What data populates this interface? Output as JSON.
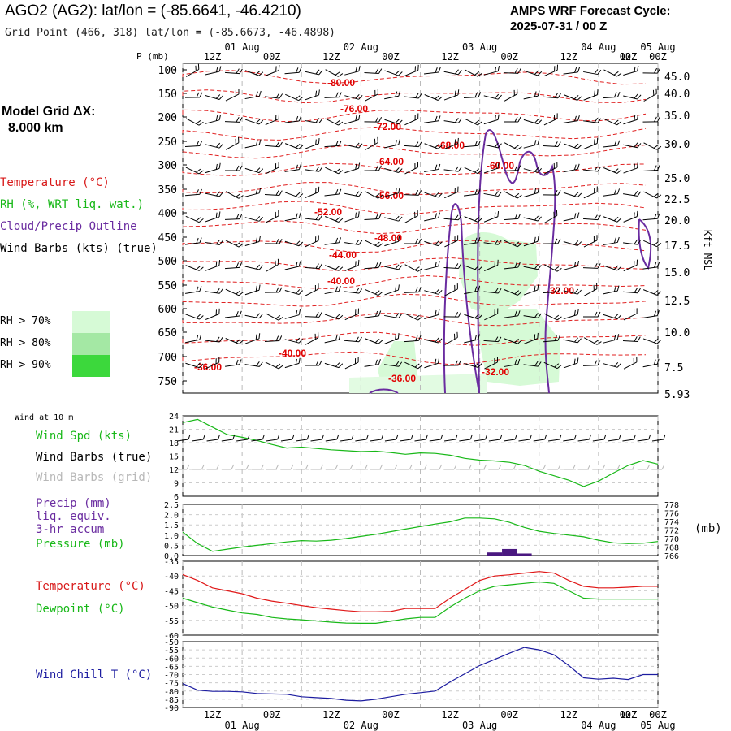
{
  "header": {
    "title": "AGO2 (AG2):  lat/lon = (-85.6641, -46.4210)",
    "subtitle": "Grid Point (466, 318) lat/lon = (-85.6673, -46.4898)",
    "cycle_line1": "AMPS WRF Forecast Cycle:",
    "cycle_line2": "2025-07-31 / 00  Z",
    "model_grid_label": "Model Grid ΔX:",
    "model_grid_value": "8.000 km"
  },
  "legend": {
    "temperature": "Temperature (°C)",
    "rh": "RH (%, WRT liq. wat.)",
    "cloud": "Cloud/Precip Outline",
    "wind": "Wind Barbs (kts) (true)",
    "rh70": "RH > 70%",
    "rh80": "RH > 80%",
    "rh90": "RH > 90%",
    "colors": {
      "rh70": "#d6fad6",
      "rh80": "#a4e8a4",
      "rh90": "#3cd83c"
    }
  },
  "time_axis": {
    "top_hours": [
      "12Z",
      "00Z",
      "12Z",
      "00Z",
      "12Z",
      "00Z",
      "12Z",
      "00Z",
      "12Z",
      "00Z"
    ],
    "top_days": [
      "01 Aug",
      "02 Aug",
      "03 Aug",
      "04 Aug",
      "05 Aug"
    ]
  },
  "chart_data": [
    {
      "type": "line",
      "name": "time-height cross section",
      "y_label": "P (mb)",
      "y_ticks": [
        "100",
        "150",
        "200",
        "250",
        "300",
        "350",
        "400",
        "450",
        "500",
        "550",
        "600",
        "650",
        "700",
        "750"
      ],
      "right_label": "Kft MSL",
      "right_ticks": [
        "45.0",
        "40.0",
        "35.0",
        "30.0",
        "25.0",
        "22.5",
        "20.0",
        "17.5",
        "15.0",
        "12.5",
        "10.0",
        "7.5",
        "5.93"
      ],
      "temperature_contours": [
        "-80.00",
        "-76.00",
        "-72.00",
        "-68.00",
        "-64.00",
        "-60.00",
        "-56.00",
        "-52.00",
        "-48.00",
        "-44.00",
        "-40.00",
        "-40.00",
        "-36.00",
        "-36.00",
        "-32.00",
        "-32.00"
      ],
      "rh_shading_levels": [
        70,
        80,
        90
      ]
    },
    {
      "type": "line",
      "name": "wind at 10 m",
      "panel_label": "Wind at 10 m",
      "labels": [
        "Wind Spd (kts)",
        "Wind Barbs (true)",
        "Wind Barbs (grid)"
      ],
      "yticks": [
        "24",
        "21",
        "18",
        "15",
        "12",
        "9",
        "6"
      ],
      "ylim": [
        6,
        24
      ],
      "x": [
        0,
        3,
        6,
        9,
        12,
        15,
        18,
        21,
        24,
        27,
        30,
        33,
        36,
        39,
        42,
        45,
        48,
        51,
        54,
        57,
        60,
        63,
        66,
        69,
        72,
        75,
        78,
        81,
        84,
        87,
        90,
        93,
        96
      ],
      "series": [
        {
          "values": [
            22.5,
            23.2,
            21.5,
            19.8,
            19.2,
            18.5,
            17.6,
            16.8,
            17.0,
            16.7,
            16.4,
            16.2,
            16.0,
            16.1,
            15.8,
            15.4,
            15.7,
            15.6,
            15.2,
            14.5,
            14.1,
            13.9,
            13.6,
            12.9,
            11.6,
            10.6,
            9.6,
            8.2,
            9.4,
            11.2,
            12.9,
            14.0,
            13.2
          ]
        }
      ]
    },
    {
      "type": "line",
      "name": "precip and pressure",
      "labels": [
        "Precip (mm)",
        "liq. equiv.",
        "3-hr accum",
        "Pressure (mb)"
      ],
      "unit_right": "(mb)",
      "yticks_left": [
        "2.5",
        "2.0",
        "1.5",
        "1.0",
        "0.5",
        "0.0"
      ],
      "yticks_right": [
        "778",
        "776",
        "774",
        "772",
        "770",
        "768",
        "766"
      ],
      "ylim_left": [
        0,
        2.5
      ],
      "ylim_right": [
        766,
        778
      ],
      "x": [
        0,
        3,
        6,
        9,
        12,
        15,
        18,
        21,
        24,
        27,
        30,
        33,
        36,
        39,
        42,
        45,
        48,
        51,
        54,
        57,
        60,
        63,
        66,
        69,
        72,
        75,
        78,
        81,
        84,
        87,
        90,
        93,
        96
      ],
      "pressure": [
        771.5,
        768.8,
        767.0,
        767.5,
        768.0,
        768.4,
        768.8,
        769.2,
        769.5,
        769.4,
        769.6,
        770.0,
        770.5,
        771.0,
        771.6,
        772.2,
        772.8,
        773.4,
        773.9,
        774.8,
        774.8,
        774.6,
        773.8,
        772.6,
        771.7,
        771.2,
        770.8,
        770.4,
        769.6,
        769.0,
        768.8,
        768.9,
        769.3
      ],
      "precip_x": [
        63,
        66,
        69
      ],
      "precip": [
        0.15,
        0.32,
        0.1
      ]
    },
    {
      "type": "line",
      "name": "temperature and dewpoint",
      "labels": [
        "Temperature (°C)",
        "Dewpoint (°C)"
      ],
      "yticks": [
        "-35",
        "-40",
        "-45",
        "-50",
        "-55",
        "-60"
      ],
      "ylim": [
        -60,
        -35
      ],
      "x": [
        0,
        3,
        6,
        9,
        12,
        15,
        18,
        21,
        24,
        27,
        30,
        33,
        36,
        39,
        42,
        45,
        48,
        51,
        54,
        57,
        60,
        63,
        66,
        69,
        72,
        75,
        78,
        81,
        84,
        87,
        90,
        93,
        96
      ],
      "series": [
        {
          "name": "Temperature (°C)",
          "values": [
            -39.5,
            -41.5,
            -44.0,
            -45.0,
            -46.0,
            -47.5,
            -48.5,
            -49.2,
            -50.0,
            -50.7,
            -51.2,
            -51.7,
            -52.1,
            -52.1,
            -52.0,
            -51.0,
            -51.0,
            -51.0,
            -47.5,
            -44.5,
            -41.5,
            -40.0,
            -39.6,
            -39.0,
            -38.5,
            -39.0,
            -41.5,
            -43.5,
            -44.0,
            -44.0,
            -43.8,
            -43.5,
            -43.5
          ]
        },
        {
          "name": "Dewpoint (°C)",
          "values": [
            -47.5,
            -49.0,
            -50.5,
            -51.5,
            -52.5,
            -53.0,
            -54.0,
            -54.5,
            -54.8,
            -55.2,
            -55.6,
            -55.9,
            -56.0,
            -56.0,
            -55.3,
            -54.5,
            -54.0,
            -54.0,
            -50.5,
            -47.5,
            -45.0,
            -43.5,
            -43.0,
            -42.5,
            -42.0,
            -42.5,
            -45.0,
            -47.5,
            -47.8,
            -47.8,
            -47.8,
            -47.8,
            -47.8
          ]
        }
      ]
    },
    {
      "type": "line",
      "name": "wind chill",
      "labels": [
        "Wind Chill T (°C)"
      ],
      "yticks": [
        "-50",
        "-55",
        "-60",
        "-65",
        "-70",
        "-75",
        "-80",
        "-85",
        "-90"
      ],
      "ylim": [
        -90,
        -50
      ],
      "x": [
        0,
        3,
        6,
        9,
        12,
        15,
        18,
        21,
        24,
        27,
        30,
        33,
        36,
        39,
        42,
        45,
        48,
        51,
        54,
        57,
        60,
        63,
        66,
        69,
        72,
        75,
        78,
        81,
        84,
        87,
        90,
        93,
        96
      ],
      "series": [
        {
          "name": "Wind Chill T (°C)",
          "values": [
            -75.5,
            -79.5,
            -80.2,
            -80.2,
            -80.5,
            -81.5,
            -81.8,
            -82.0,
            -83.5,
            -84.0,
            -84.5,
            -85.6,
            -86.0,
            -85.0,
            -83.5,
            -82.0,
            -81.0,
            -80.0,
            -74.5,
            -69.5,
            -64.5,
            -60.8,
            -57.0,
            -53.5,
            -55.0,
            -58.0,
            -64.5,
            -72.0,
            -72.8,
            -72.2,
            -73.0,
            -70.0,
            -70.0
          ]
        }
      ]
    }
  ],
  "bottom_axis": {
    "hours": [
      "12Z",
      "00Z",
      "12Z",
      "00Z",
      "12Z",
      "00Z",
      "12Z",
      "00Z",
      "12Z",
      "00Z"
    ],
    "days": [
      "01 Aug",
      "02 Aug",
      "03 Aug",
      "04 Aug",
      "05 Aug"
    ]
  }
}
